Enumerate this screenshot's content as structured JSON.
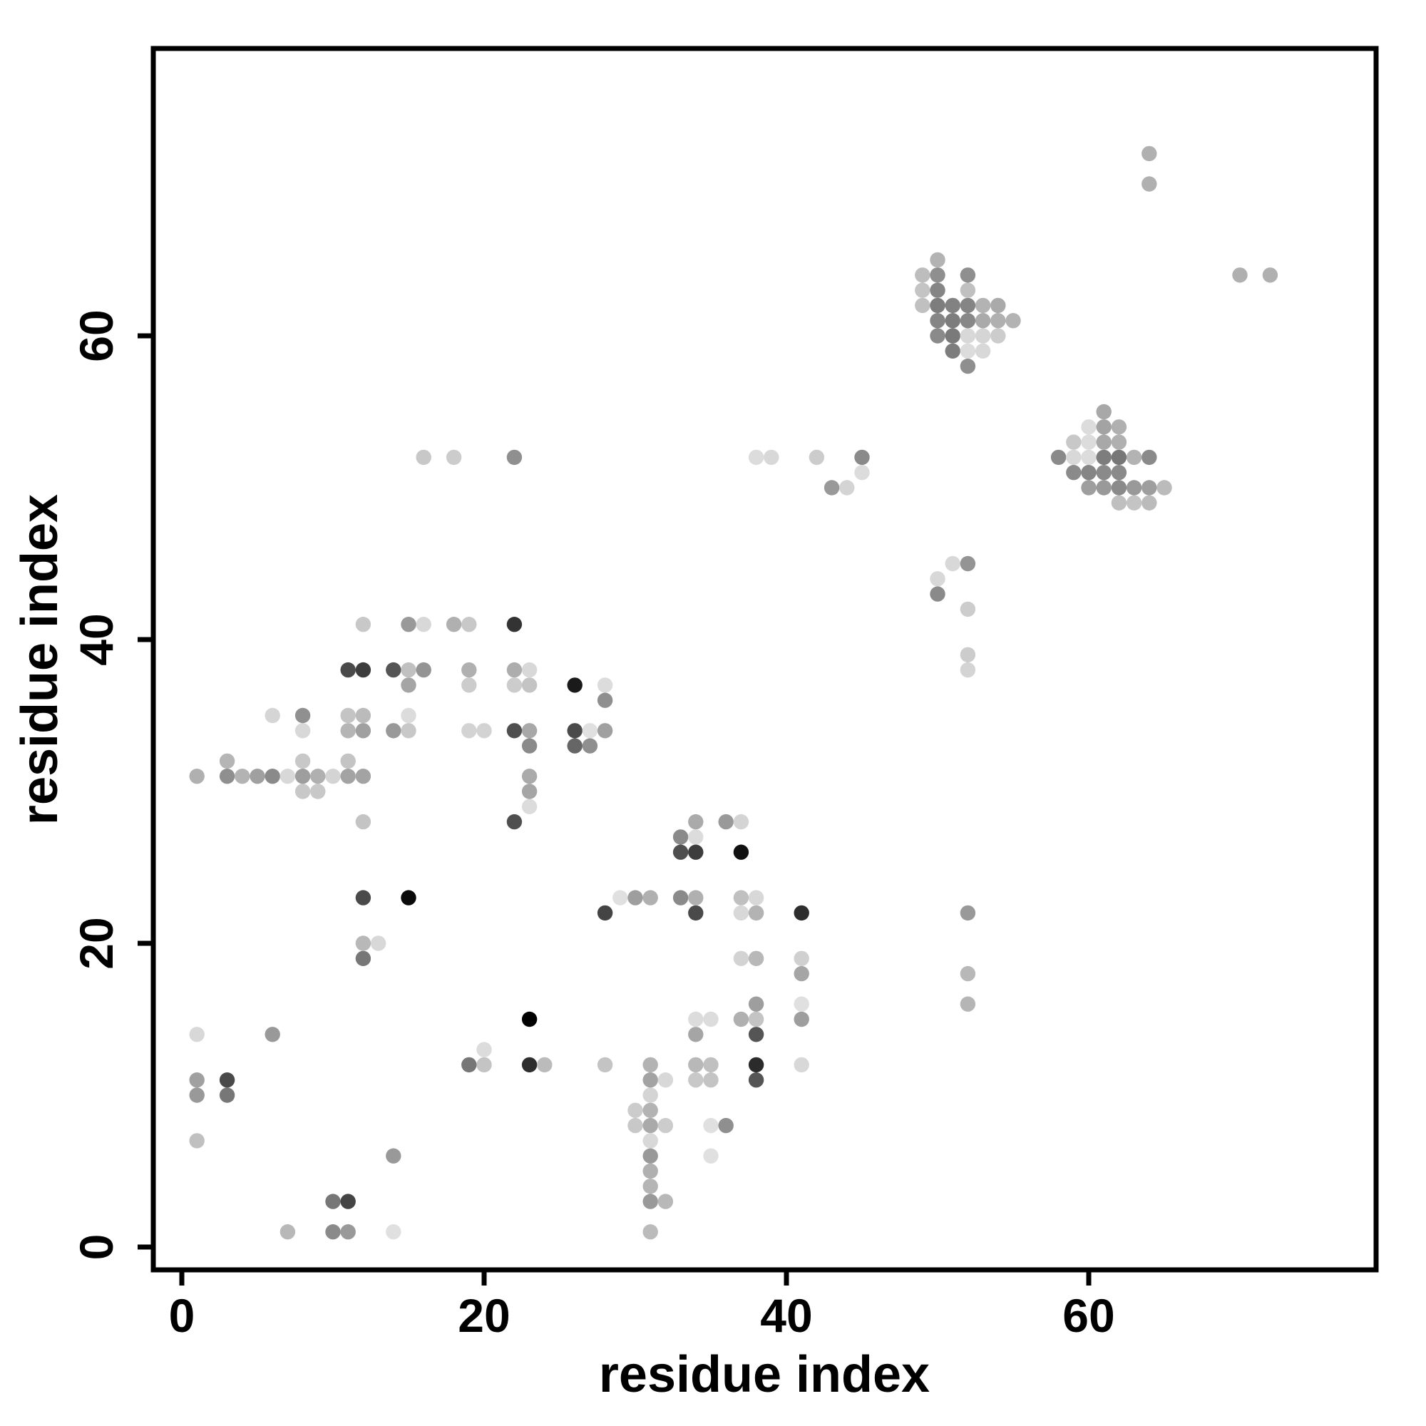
{
  "figure": {
    "background": "#ffffff",
    "axis_color": "#000000"
  },
  "chart_data": {
    "type": "scatter",
    "title": "",
    "xlabel": "residue index",
    "ylabel": "residue index",
    "xlim": [
      -2,
      79
    ],
    "ylim": [
      -2,
      79
    ],
    "x_ticks": [
      0,
      20,
      40,
      60
    ],
    "y_ticks": [
      0,
      20,
      40,
      60
    ],
    "grid": false,
    "legend": null,
    "marker": {
      "shape": "circle",
      "radius_px": 10.7
    },
    "points": [
      [
        7,
        1,
        "#b8b8b8"
      ],
      [
        10,
        1,
        "#8a8a8a"
      ],
      [
        11,
        1,
        "#999999"
      ],
      [
        14,
        1,
        "#e0e0e0"
      ],
      [
        31,
        1,
        "#bbbbbb"
      ],
      [
        10,
        3,
        "#777777"
      ],
      [
        11,
        3,
        "#444444"
      ],
      [
        31,
        3,
        "#999999"
      ],
      [
        32,
        3,
        "#b8b8b8"
      ],
      [
        31,
        4,
        "#b5b5b5"
      ],
      [
        31,
        5,
        "#b0b0b0"
      ],
      [
        31,
        6,
        "#999999"
      ],
      [
        35,
        6,
        "#e0e0e0"
      ],
      [
        14,
        6,
        "#999999"
      ],
      [
        1,
        7,
        "#c0c0c0"
      ],
      [
        31,
        7,
        "#d8d8d8"
      ],
      [
        30,
        8,
        "#c8c8c8"
      ],
      [
        31,
        8,
        "#aaaaaa"
      ],
      [
        32,
        8,
        "#cccccc"
      ],
      [
        35,
        8,
        "#e0e0e0"
      ],
      [
        36,
        8,
        "#8f8f8f"
      ],
      [
        30,
        9,
        "#cccccc"
      ],
      [
        31,
        9,
        "#b3b3b3"
      ],
      [
        1,
        10,
        "#999999"
      ],
      [
        3,
        10,
        "#777777"
      ],
      [
        31,
        10,
        "#d4d4d4"
      ],
      [
        1,
        11,
        "#a0a0a0"
      ],
      [
        3,
        11,
        "#4a4a4a"
      ],
      [
        31,
        11,
        "#a3a3a3"
      ],
      [
        32,
        11,
        "#d8d8d8"
      ],
      [
        34,
        11,
        "#c8c8c8"
      ],
      [
        35,
        11,
        "#c4c4c4"
      ],
      [
        38,
        11,
        "#555555"
      ],
      [
        19,
        12,
        "#777777"
      ],
      [
        20,
        12,
        "#c4c4c4"
      ],
      [
        23,
        12,
        "#2e2e2e"
      ],
      [
        24,
        12,
        "#bbbbbb"
      ],
      [
        28,
        12,
        "#c4c4c4"
      ],
      [
        31,
        12,
        "#b3b3b3"
      ],
      [
        34,
        12,
        "#b8b8b8"
      ],
      [
        35,
        12,
        "#c0c0c0"
      ],
      [
        38,
        12,
        "#2b2b2b"
      ],
      [
        41,
        12,
        "#d8d8d8"
      ],
      [
        20,
        13,
        "#dcdcdc"
      ],
      [
        1,
        14,
        "#d8d8d8"
      ],
      [
        6,
        14,
        "#999999"
      ],
      [
        34,
        14,
        "#a5a5a5"
      ],
      [
        38,
        14,
        "#555555"
      ],
      [
        23,
        15,
        "#000000"
      ],
      [
        34,
        15,
        "#dcdcdc"
      ],
      [
        35,
        15,
        "#dcdcdc"
      ],
      [
        37,
        15,
        "#b0b0b0"
      ],
      [
        38,
        15,
        "#c4c4c4"
      ],
      [
        41,
        15,
        "#9e9e9e"
      ],
      [
        38,
        16,
        "#9e9e9e"
      ],
      [
        41,
        16,
        "#e0e0e0"
      ],
      [
        52,
        16,
        "#b5b5b5"
      ],
      [
        41,
        18,
        "#a5a5a5"
      ],
      [
        52,
        18,
        "#b8b8b8"
      ],
      [
        12,
        19,
        "#777777"
      ],
      [
        37,
        19,
        "#d3d3d3"
      ],
      [
        38,
        19,
        "#b8b8b8"
      ],
      [
        41,
        19,
        "#d0d0d0"
      ],
      [
        12,
        20,
        "#b8b8b8"
      ],
      [
        13,
        20,
        "#d8d8d8"
      ],
      [
        28,
        22,
        "#444444"
      ],
      [
        34,
        22,
        "#4a4a4a"
      ],
      [
        37,
        22,
        "#d8d8d8"
      ],
      [
        38,
        22,
        "#b3b3b3"
      ],
      [
        41,
        22,
        "#2e2e2e"
      ],
      [
        52,
        22,
        "#999999"
      ],
      [
        12,
        23,
        "#4a4a4a"
      ],
      [
        15,
        23,
        "#0a0a0a"
      ],
      [
        29,
        23,
        "#e0e0e0"
      ],
      [
        30,
        23,
        "#9e9e9e"
      ],
      [
        31,
        23,
        "#b0b0b0"
      ],
      [
        33,
        23,
        "#8a8a8a"
      ],
      [
        34,
        23,
        "#b0b0b0"
      ],
      [
        37,
        23,
        "#c0c0c0"
      ],
      [
        38,
        23,
        "#d8d8d8"
      ],
      [
        33,
        26,
        "#4f4f4f"
      ],
      [
        34,
        26,
        "#3d3d3d"
      ],
      [
        37,
        26,
        "#111111"
      ],
      [
        33,
        27,
        "#8a8a8a"
      ],
      [
        34,
        27,
        "#dcdcdc"
      ],
      [
        12,
        28,
        "#c4c4c4"
      ],
      [
        22,
        28,
        "#4f4f4f"
      ],
      [
        34,
        28,
        "#aaaaaa"
      ],
      [
        36,
        28,
        "#999999"
      ],
      [
        37,
        28,
        "#d4d4d4"
      ],
      [
        23,
        29,
        "#dcdcdc"
      ],
      [
        8,
        30,
        "#c8c8c8"
      ],
      [
        9,
        30,
        "#c8c8c8"
      ],
      [
        23,
        30,
        "#a5a5a5"
      ],
      [
        1,
        31,
        "#b0b0b0"
      ],
      [
        3,
        31,
        "#8f8f8f"
      ],
      [
        4,
        31,
        "#b3b3b3"
      ],
      [
        5,
        31,
        "#a0a0a0"
      ],
      [
        6,
        31,
        "#8a8a8a"
      ],
      [
        7,
        31,
        "#d8d8d8"
      ],
      [
        8,
        31,
        "#9e9e9e"
      ],
      [
        9,
        31,
        "#b0b0b0"
      ],
      [
        10,
        31,
        "#d4d4d4"
      ],
      [
        11,
        31,
        "#a3a3a3"
      ],
      [
        12,
        31,
        "#a3a3a3"
      ],
      [
        23,
        31,
        "#aaaaaa"
      ],
      [
        3,
        32,
        "#b5b5b5"
      ],
      [
        8,
        32,
        "#c8c8c8"
      ],
      [
        11,
        32,
        "#c4c4c4"
      ],
      [
        23,
        33,
        "#8a8a8a"
      ],
      [
        26,
        33,
        "#666666"
      ],
      [
        27,
        33,
        "#8f8f8f"
      ],
      [
        8,
        34,
        "#d8d8d8"
      ],
      [
        11,
        34,
        "#b5b5b5"
      ],
      [
        12,
        34,
        "#a0a0a0"
      ],
      [
        14,
        34,
        "#999999"
      ],
      [
        15,
        34,
        "#c8c8c8"
      ],
      [
        19,
        34,
        "#d3d3d3"
      ],
      [
        20,
        34,
        "#d3d3d3"
      ],
      [
        22,
        34,
        "#4f4f4f"
      ],
      [
        23,
        34,
        "#a8a8a8"
      ],
      [
        26,
        34,
        "#4a4a4a"
      ],
      [
        27,
        34,
        "#e0e0e0"
      ],
      [
        28,
        34,
        "#a0a0a0"
      ],
      [
        6,
        35,
        "#d5d5d5"
      ],
      [
        8,
        35,
        "#909090"
      ],
      [
        11,
        35,
        "#c4c4c4"
      ],
      [
        12,
        35,
        "#bbbbbb"
      ],
      [
        15,
        35,
        "#dcdcdc"
      ],
      [
        28,
        36,
        "#8f8f8f"
      ],
      [
        15,
        37,
        "#a5a5a5"
      ],
      [
        19,
        37,
        "#cccccc"
      ],
      [
        22,
        37,
        "#cccccc"
      ],
      [
        23,
        37,
        "#c4c4c4"
      ],
      [
        26,
        37,
        "#1a1a1a"
      ],
      [
        28,
        37,
        "#dcdcdc"
      ],
      [
        11,
        38,
        "#4a4a4a"
      ],
      [
        12,
        38,
        "#3d3d3d"
      ],
      [
        14,
        38,
        "#555555"
      ],
      [
        15,
        38,
        "#c0c0c0"
      ],
      [
        16,
        38,
        "#949494"
      ],
      [
        19,
        38,
        "#b0b0b0"
      ],
      [
        22,
        38,
        "#adadad"
      ],
      [
        23,
        38,
        "#d8d8d8"
      ],
      [
        52,
        38,
        "#d4d4d4"
      ],
      [
        52,
        39,
        "#cccccc"
      ],
      [
        12,
        41,
        "#c8c8c8"
      ],
      [
        15,
        41,
        "#999999"
      ],
      [
        16,
        41,
        "#d8d8d8"
      ],
      [
        18,
        41,
        "#b0b0b0"
      ],
      [
        19,
        41,
        "#c8c8c8"
      ],
      [
        22,
        41,
        "#333333"
      ],
      [
        52,
        42,
        "#cccccc"
      ],
      [
        50,
        43,
        "#8a8a8a"
      ],
      [
        50,
        44,
        "#d8d8d8"
      ],
      [
        51,
        45,
        "#d8d8d8"
      ],
      [
        52,
        45,
        "#949494"
      ],
      [
        62,
        49,
        "#bfbfbf"
      ],
      [
        63,
        49,
        "#c4c4c4"
      ],
      [
        64,
        49,
        "#bbbbbb"
      ],
      [
        43,
        50,
        "#999999"
      ],
      [
        44,
        50,
        "#d4d4d4"
      ],
      [
        60,
        50,
        "#9e9e9e"
      ],
      [
        61,
        50,
        "#999999"
      ],
      [
        62,
        50,
        "#8a8a8a"
      ],
      [
        63,
        50,
        "#999999"
      ],
      [
        64,
        50,
        "#9e9e9e"
      ],
      [
        65,
        50,
        "#bbbbbb"
      ],
      [
        45,
        51,
        "#dcdcdc"
      ],
      [
        59,
        51,
        "#8a8a8a"
      ],
      [
        60,
        51,
        "#858585"
      ],
      [
        61,
        51,
        "#8a8a8a"
      ],
      [
        62,
        51,
        "#8a8a8a"
      ],
      [
        16,
        52,
        "#c8c8c8"
      ],
      [
        18,
        52,
        "#cccccc"
      ],
      [
        22,
        52,
        "#8f8f8f"
      ],
      [
        38,
        52,
        "#dcdcdc"
      ],
      [
        39,
        52,
        "#d8d8d8"
      ],
      [
        42,
        52,
        "#cccccc"
      ],
      [
        45,
        52,
        "#8a8a8a"
      ],
      [
        58,
        52,
        "#8a8a8a"
      ],
      [
        59,
        52,
        "#d8d8d8"
      ],
      [
        60,
        52,
        "#dcdcdc"
      ],
      [
        61,
        52,
        "#7d7d7d"
      ],
      [
        62,
        52,
        "#777777"
      ],
      [
        63,
        52,
        "#b3b3b3"
      ],
      [
        64,
        52,
        "#8a8a8a"
      ],
      [
        59,
        53,
        "#c8c8c8"
      ],
      [
        60,
        53,
        "#dcdcdc"
      ],
      [
        61,
        53,
        "#a8a8a8"
      ],
      [
        62,
        53,
        "#b0b0b0"
      ],
      [
        60,
        54,
        "#dcdcdc"
      ],
      [
        61,
        54,
        "#a3a3a3"
      ],
      [
        62,
        54,
        "#b0b0b0"
      ],
      [
        61,
        55,
        "#a8a8a8"
      ],
      [
        52,
        58,
        "#8f8f8f"
      ],
      [
        51,
        59,
        "#7d7d7d"
      ],
      [
        52,
        59,
        "#dcdcdc"
      ],
      [
        53,
        59,
        "#d8d8d8"
      ],
      [
        50,
        60,
        "#8a8a8a"
      ],
      [
        51,
        60,
        "#7a7a7a"
      ],
      [
        52,
        60,
        "#d8d8d8"
      ],
      [
        53,
        60,
        "#d5d5d5"
      ],
      [
        54,
        60,
        "#cccccc"
      ],
      [
        50,
        61,
        "#858585"
      ],
      [
        51,
        61,
        "#7d7d7d"
      ],
      [
        52,
        61,
        "#888888"
      ],
      [
        53,
        61,
        "#aaaaaa"
      ],
      [
        54,
        61,
        "#b0b0b0"
      ],
      [
        55,
        61,
        "#b3b3b3"
      ],
      [
        49,
        62,
        "#c0c0c0"
      ],
      [
        50,
        62,
        "#7d7d7d"
      ],
      [
        51,
        62,
        "#828282"
      ],
      [
        52,
        62,
        "#858585"
      ],
      [
        53,
        62,
        "#b3b3b3"
      ],
      [
        54,
        62,
        "#aaaaaa"
      ],
      [
        49,
        63,
        "#c4c4c4"
      ],
      [
        50,
        63,
        "#858585"
      ],
      [
        52,
        63,
        "#c0c0c0"
      ],
      [
        49,
        64,
        "#bdbdbd"
      ],
      [
        50,
        64,
        "#8f8f8f"
      ],
      [
        52,
        64,
        "#8f8f8f"
      ],
      [
        70,
        64,
        "#b0b0b0"
      ],
      [
        72,
        64,
        "#b0b0b0"
      ],
      [
        50,
        65,
        "#b3b3b3"
      ],
      [
        64,
        70,
        "#b0b0b0"
      ],
      [
        64,
        72,
        "#b0b0b0"
      ]
    ]
  }
}
